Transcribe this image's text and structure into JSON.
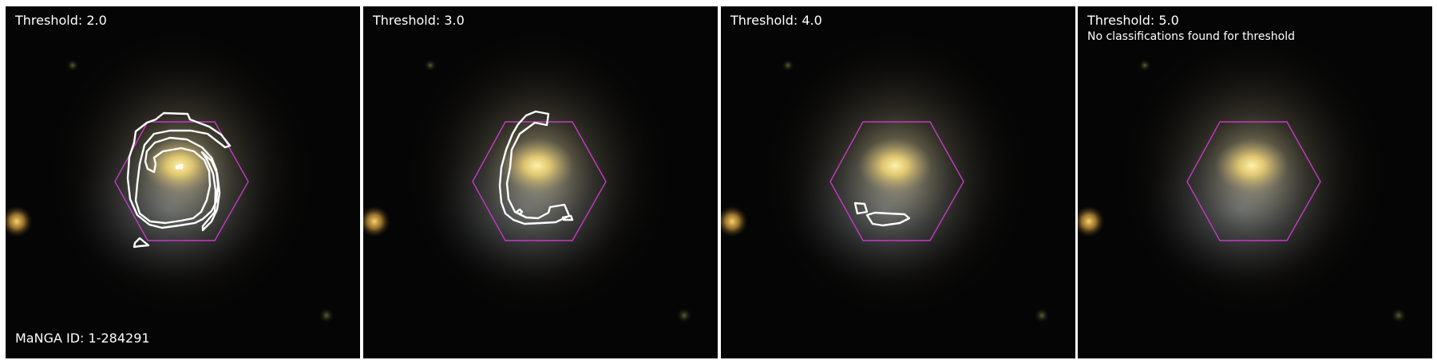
{
  "panels": [
    {
      "title": "Threshold: 2.0",
      "note": "",
      "id_label": "MaNGA ID: 1-284291"
    },
    {
      "title": "Threshold: 3.0",
      "note": ""
    },
    {
      "title": "Threshold: 4.0",
      "note": ""
    },
    {
      "title": "Threshold: 5.0",
      "note": "No classifications found for threshold"
    }
  ],
  "colors": {
    "background": "#050505",
    "hexagon": "#c43bc4",
    "contour": "#ffffff",
    "galaxy_core": "#f1d67a",
    "galaxy_halo": "#8a7e5a",
    "bright_star": "#d8a845"
  }
}
